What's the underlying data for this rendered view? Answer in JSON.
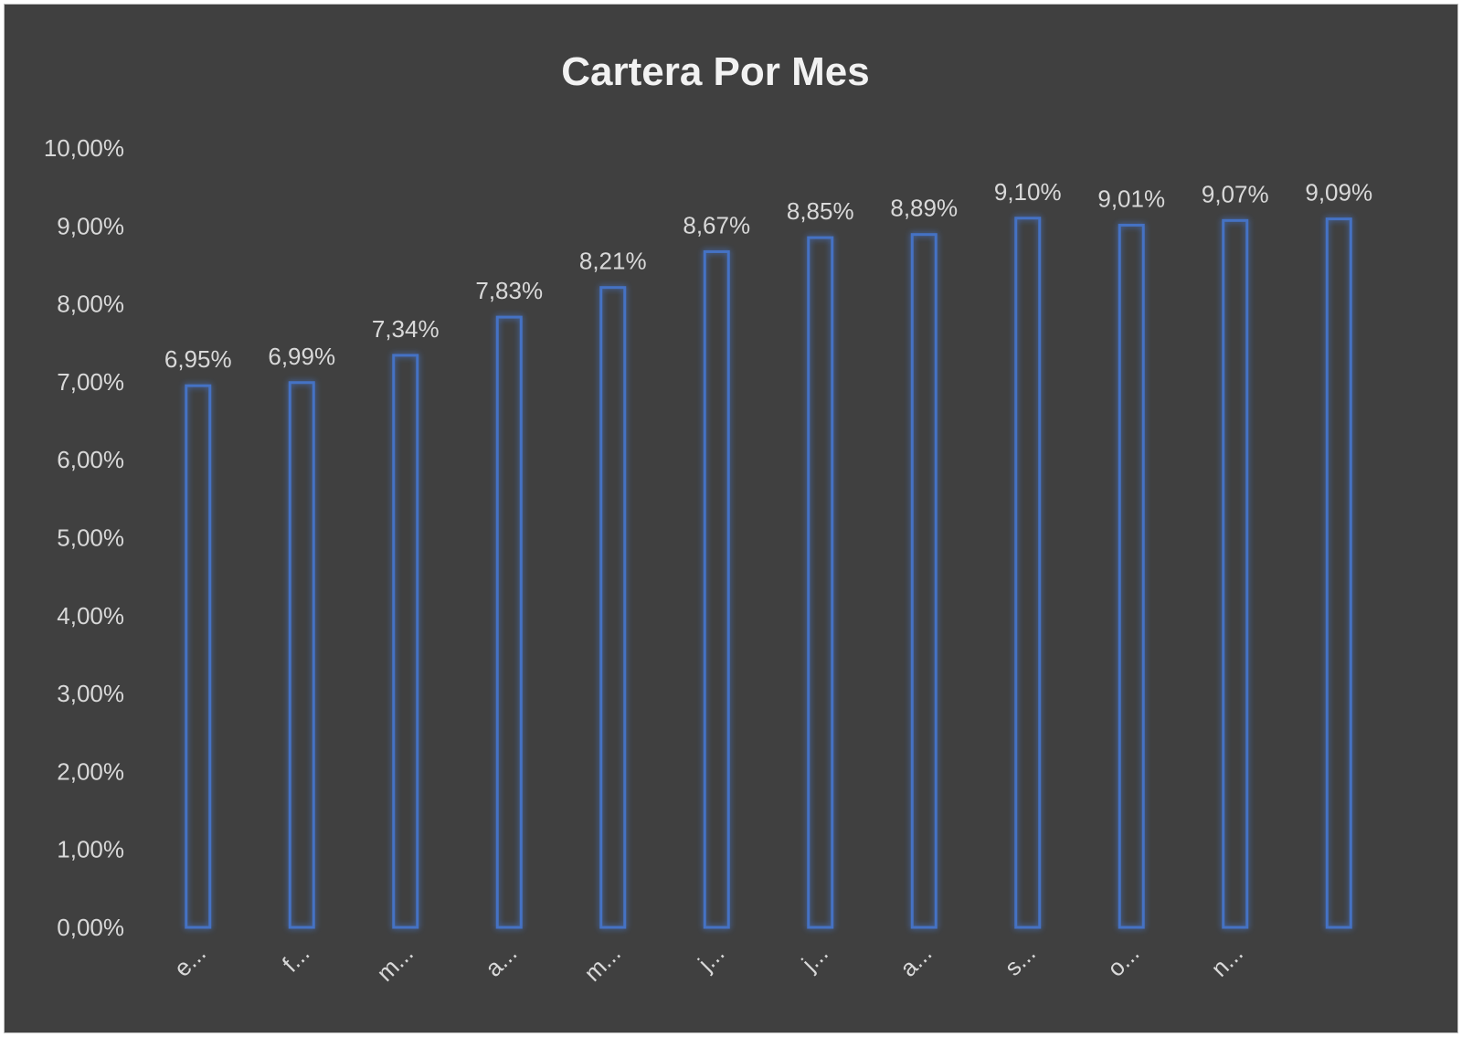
{
  "chart_data": {
    "type": "bar",
    "title": "Cartera Por Mes",
    "categories": [
      "e...",
      "f...",
      "m...",
      "a...",
      "m...",
      "j...",
      "j...",
      "a...",
      "s...",
      "o...",
      "n...",
      ""
    ],
    "values": [
      6.95,
      6.99,
      7.34,
      7.83,
      8.21,
      8.67,
      8.85,
      8.89,
      9.1,
      9.01,
      9.07,
      9.09
    ],
    "data_labels": [
      "6,95%",
      "6,99%",
      "7,34%",
      "7,83%",
      "8,21%",
      "8,67%",
      "8,85%",
      "8,89%",
      "9,10%",
      "9,01%",
      "9,07%",
      "9,09%"
    ],
    "y_ticks": [
      "0,00%",
      "1,00%",
      "2,00%",
      "3,00%",
      "4,00%",
      "5,00%",
      "6,00%",
      "7,00%",
      "8,00%",
      "9,00%",
      "10,00%"
    ],
    "ylim": [
      0,
      10
    ],
    "xlabel": "",
    "ylabel": "",
    "grid": false,
    "legend": "none",
    "colors": {
      "background": "#404040",
      "bar_outline": "#4472c4",
      "bar_glow": "#2f5597",
      "text": "#d9d9d9",
      "title": "#f2f2f2"
    }
  }
}
